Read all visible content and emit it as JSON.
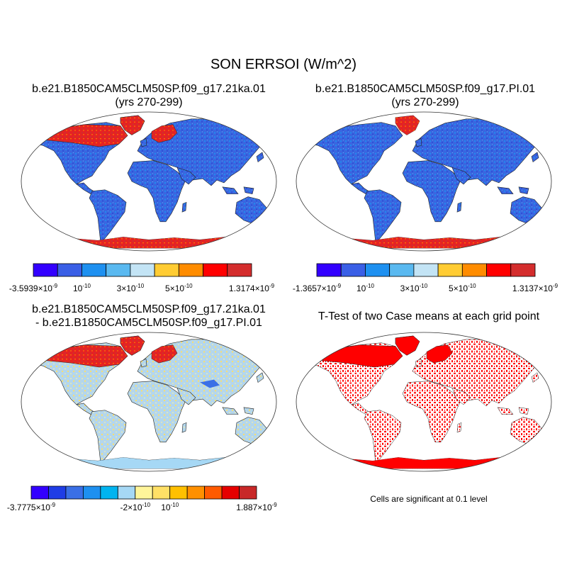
{
  "title": "SON ERRSOI (W/m^2)",
  "panels": [
    {
      "title_line1": "b.e21.B1850CAM5CLM50SP.f09_g17.21ka.01",
      "title_line2": "(yrs 270-299)",
      "colorbar": {
        "colors": [
          "#3300ff",
          "#3a5fe6",
          "#1e90f0",
          "#5ab9f0",
          "#c3e4f5",
          "#ffcc33",
          "#ff8c00",
          "#ff0000",
          "#d42d2d"
        ],
        "labels": [
          {
            "base": "-3.5939×10",
            "exp": "-9",
            "at": 0
          },
          {
            "base": "10",
            "exp": "-10",
            "at": 2
          },
          {
            "base": "3×10",
            "exp": "-10",
            "at": 4
          },
          {
            "base": "5×10",
            "exp": "-10",
            "at": 6
          },
          {
            "base": "1.3174×10",
            "exp": "-9",
            "at": 9
          }
        ]
      }
    },
    {
      "title_line1": "b.e21.B1850CAM5CLM50SP.f09_g17.PI.01",
      "title_line2": "(yrs 270-299)",
      "colorbar": {
        "colors": [
          "#3300ff",
          "#3a5fe6",
          "#1e90f0",
          "#5ab9f0",
          "#c3e4f5",
          "#ffcc33",
          "#ff8c00",
          "#ff0000",
          "#d42d2d"
        ],
        "labels": [
          {
            "base": "-1.3657×10",
            "exp": "-9",
            "at": 0
          },
          {
            "base": "10",
            "exp": "-10",
            "at": 2
          },
          {
            "base": "3×10",
            "exp": "-10",
            "at": 4
          },
          {
            "base": "5×10",
            "exp": "-10",
            "at": 6
          },
          {
            "base": "1.3137×10",
            "exp": "-9",
            "at": 9
          }
        ]
      }
    },
    {
      "title_line1": "b.e21.B1850CAM5CLM50SP.f09_g17.21ka.01",
      "title_line2": "- b.e21.B1850CAM5CLM50SP.f09_g17.PI.01",
      "colorbar": {
        "colors": [
          "#3300ff",
          "#1f3de6",
          "#3a6fe6",
          "#1e90f0",
          "#00b4f0",
          "#a6d8f5",
          "#fff59a",
          "#ffe066",
          "#ffc000",
          "#ff9000",
          "#ff5a00",
          "#e60000",
          "#c82828"
        ],
        "labels": [
          {
            "base": "-3.7775×10",
            "exp": "-9",
            "at": 0
          },
          {
            "base": "-2×10",
            "exp": "-10",
            "at": 6
          },
          {
            "base": "10",
            "exp": "-10",
            "at": 8
          },
          {
            "base": "1.887×10",
            "exp": "-9",
            "at": 13
          }
        ]
      }
    },
    {
      "title_line1": "T-Test of two Case means at each grid point",
      "note": "Cells are significant at 0.1 level"
    }
  ]
}
